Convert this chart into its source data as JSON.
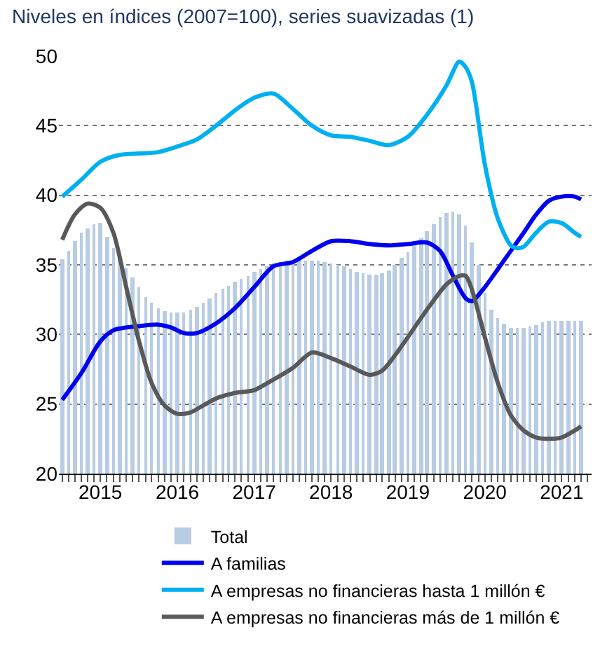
{
  "chart_data": {
    "type": "bar",
    "title": "Niveles en índices (2007=100), series suavizadas (1)",
    "ylim": [
      20,
      50
    ],
    "yticks": [
      20,
      25,
      30,
      35,
      40,
      45,
      50
    ],
    "xlim": [
      "2014-12-16",
      "2021-11-20"
    ],
    "xticks": [
      {
        "value": "2015-07-01",
        "label": "2015"
      },
      {
        "value": "2016-07-01",
        "label": "2016"
      },
      {
        "value": "2017-07-01",
        "label": "2017"
      },
      {
        "value": "2018-07-01",
        "label": "2018"
      },
      {
        "value": "2019-07-01",
        "label": "2019"
      },
      {
        "value": "2020-07-01",
        "label": "2020"
      },
      {
        "value": "2021-07-01",
        "label": "2021"
      }
    ],
    "grid": "y",
    "legend": "bottom",
    "marker": "none",
    "line_style": "solid",
    "series": [
      {
        "name": "Total",
        "color": "#b8cce4",
        "x": [
          "2015-01",
          "2015-02",
          "2015-03",
          "2015-04",
          "2015-05",
          "2015-06",
          "2015-07",
          "2015-08",
          "2015-09",
          "2015-10",
          "2015-11",
          "2015-12",
          "2016-01",
          "2016-02",
          "2016-03",
          "2016-04",
          "2016-05",
          "2016-06",
          "2016-07",
          "2016-08",
          "2016-09",
          "2016-10",
          "2016-11",
          "2016-12",
          "2017-01",
          "2017-02",
          "2017-03",
          "2017-04",
          "2017-05",
          "2017-06",
          "2017-07",
          "2017-08",
          "2017-09",
          "2017-10",
          "2017-11",
          "2017-12",
          "2018-01",
          "2018-02",
          "2018-03",
          "2018-04",
          "2018-05",
          "2018-06",
          "2018-07",
          "2018-08",
          "2018-09",
          "2018-10",
          "2018-11",
          "2018-12",
          "2019-01",
          "2019-02",
          "2019-03",
          "2019-04",
          "2019-05",
          "2019-06",
          "2019-07",
          "2019-08",
          "2019-09",
          "2019-10",
          "2019-11",
          "2019-12",
          "2020-01",
          "2020-02",
          "2020-03",
          "2020-04",
          "2020-05",
          "2020-06",
          "2020-07",
          "2020-08",
          "2020-09",
          "2020-10",
          "2020-11",
          "2020-12",
          "2021-01",
          "2021-02",
          "2021-03",
          "2021-04",
          "2021-05",
          "2021-06",
          "2021-07",
          "2021-08",
          "2021-09",
          "2021-10"
        ],
        "values": [
          35.4,
          36.0,
          36.7,
          37.3,
          37.6,
          37.9,
          38.0,
          37.0,
          36.2,
          35.5,
          34.8,
          34.1,
          33.4,
          32.7,
          32.3,
          31.9,
          31.7,
          31.6,
          31.6,
          31.6,
          31.8,
          32.0,
          32.3,
          32.6,
          33.0,
          33.3,
          33.5,
          33.8,
          34.0,
          34.2,
          34.5,
          34.7,
          34.9,
          35.1,
          35.2,
          35.3,
          35.3,
          35.3,
          35.3,
          35.3,
          35.3,
          35.2,
          35.1,
          35.0,
          34.9,
          34.7,
          34.5,
          34.4,
          34.3,
          34.3,
          34.4,
          34.6,
          35.0,
          35.5,
          35.9,
          36.4,
          36.9,
          37.4,
          37.9,
          38.4,
          38.7,
          38.8,
          38.6,
          37.8,
          36.6,
          35.0,
          33.0,
          31.8,
          31.2,
          30.8,
          30.5,
          30.5,
          30.5,
          30.6,
          30.7,
          30.9,
          31.0,
          31.0,
          31.0,
          31.0,
          31.0,
          31.0
        ]
      },
      {
        "name": "A familias",
        "type": "line",
        "color": "#0000ee",
        "x": [
          "2015-01",
          "2015-04",
          "2015-07",
          "2015-09",
          "2016-01",
          "2016-04",
          "2016-06",
          "2016-08",
          "2016-10",
          "2017-01",
          "2017-04",
          "2017-07",
          "2017-10",
          "2018-01",
          "2018-04",
          "2018-07",
          "2018-10",
          "2019-01",
          "2019-04",
          "2019-07",
          "2019-10",
          "2019-12",
          "2020-02",
          "2020-04",
          "2020-05",
          "2020-07",
          "2020-09",
          "2020-11",
          "2021-01",
          "2021-03",
          "2021-05",
          "2021-07",
          "2021-09",
          "2021-10"
        ],
        "values": [
          25.3,
          27.2,
          29.5,
          30.3,
          30.6,
          30.7,
          30.5,
          30.1,
          30.1,
          30.8,
          31.9,
          33.4,
          34.9,
          35.2,
          36.0,
          36.7,
          36.7,
          36.5,
          36.4,
          36.5,
          36.6,
          36.0,
          34.2,
          32.6,
          32.4,
          33.4,
          34.7,
          36.0,
          37.3,
          38.6,
          39.6,
          39.9,
          39.9,
          39.7
        ]
      },
      {
        "name": "A empresas no financieras hasta 1 millón €",
        "type": "line",
        "color": "#00b0f0",
        "x": [
          "2015-01",
          "2015-04",
          "2015-07",
          "2015-10",
          "2016-01",
          "2016-04",
          "2016-07",
          "2016-10",
          "2017-01",
          "2017-04",
          "2017-07",
          "2017-10",
          "2018-01",
          "2018-04",
          "2018-07",
          "2018-10",
          "2019-01",
          "2019-04",
          "2019-07",
          "2019-10",
          "2020-01",
          "2020-03",
          "2020-04",
          "2020-05",
          "2020-07",
          "2020-09",
          "2020-11",
          "2020-12",
          "2021-01",
          "2021-03",
          "2021-05",
          "2021-07",
          "2021-09",
          "2021-10"
        ],
        "values": [
          39.9,
          41.1,
          42.4,
          42.9,
          43.0,
          43.1,
          43.5,
          44.0,
          45.0,
          46.1,
          47.0,
          47.3,
          46.2,
          45.0,
          44.3,
          44.2,
          43.9,
          43.6,
          44.2,
          45.8,
          47.9,
          49.6,
          49.2,
          48.1,
          42.2,
          38.3,
          36.4,
          36.2,
          36.3,
          37.3,
          38.1,
          38.0,
          37.3,
          37.0
        ]
      },
      {
        "name": "A empresas no financieras más de 1 millón €",
        "type": "line",
        "color": "#595959",
        "x": [
          "2015-01",
          "2015-03",
          "2015-05",
          "2015-07",
          "2015-09",
          "2015-11",
          "2016-01",
          "2016-03",
          "2016-05",
          "2016-07",
          "2016-09",
          "2016-11",
          "2017-01",
          "2017-04",
          "2017-07",
          "2017-09",
          "2018-01",
          "2018-04",
          "2018-07",
          "2018-10",
          "2019-01",
          "2019-03",
          "2019-05",
          "2019-07",
          "2019-10",
          "2020-01",
          "2020-03",
          "2020-04",
          "2020-05",
          "2020-07",
          "2020-09",
          "2020-11",
          "2021-01",
          "2021-03",
          "2021-05",
          "2021-07",
          "2021-09",
          "2021-10"
        ],
        "values": [
          36.8,
          38.6,
          39.4,
          39.1,
          37.3,
          33.4,
          29.5,
          26.5,
          24.9,
          24.3,
          24.4,
          24.9,
          25.4,
          25.8,
          26.0,
          26.5,
          27.6,
          28.7,
          28.3,
          27.7,
          27.1,
          27.4,
          28.5,
          29.8,
          31.8,
          33.6,
          34.2,
          34.2,
          33.2,
          29.8,
          26.5,
          24.2,
          23.1,
          22.6,
          22.5,
          22.6,
          23.1,
          23.4
        ]
      }
    ]
  }
}
